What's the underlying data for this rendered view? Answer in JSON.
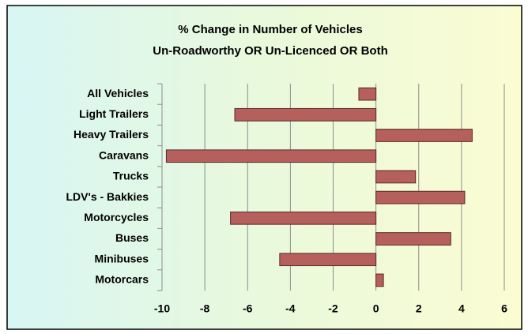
{
  "chart_data": {
    "type": "hbar",
    "title": "% Change in Number of Vehicles",
    "subtitle": "Un-Roadworthy OR Un-Licenced OR Both",
    "categories": [
      "All Vehicles",
      "Light Trailers",
      "Heavy Trailers",
      "Caravans",
      "Trucks",
      "LDV's - Bakkies",
      "Motorcycles",
      "Buses",
      "Minibuses",
      "Motorcars"
    ],
    "values": [
      -0.8,
      -6.6,
      4.5,
      -9.8,
      1.85,
      4.15,
      -6.8,
      3.5,
      -4.5,
      0.35
    ],
    "color": "#b5605c",
    "xlim": [
      -10,
      6
    ],
    "xticks": [
      -10,
      -8,
      -6,
      -4,
      -2,
      0,
      2,
      4,
      6
    ],
    "grid": true
  }
}
